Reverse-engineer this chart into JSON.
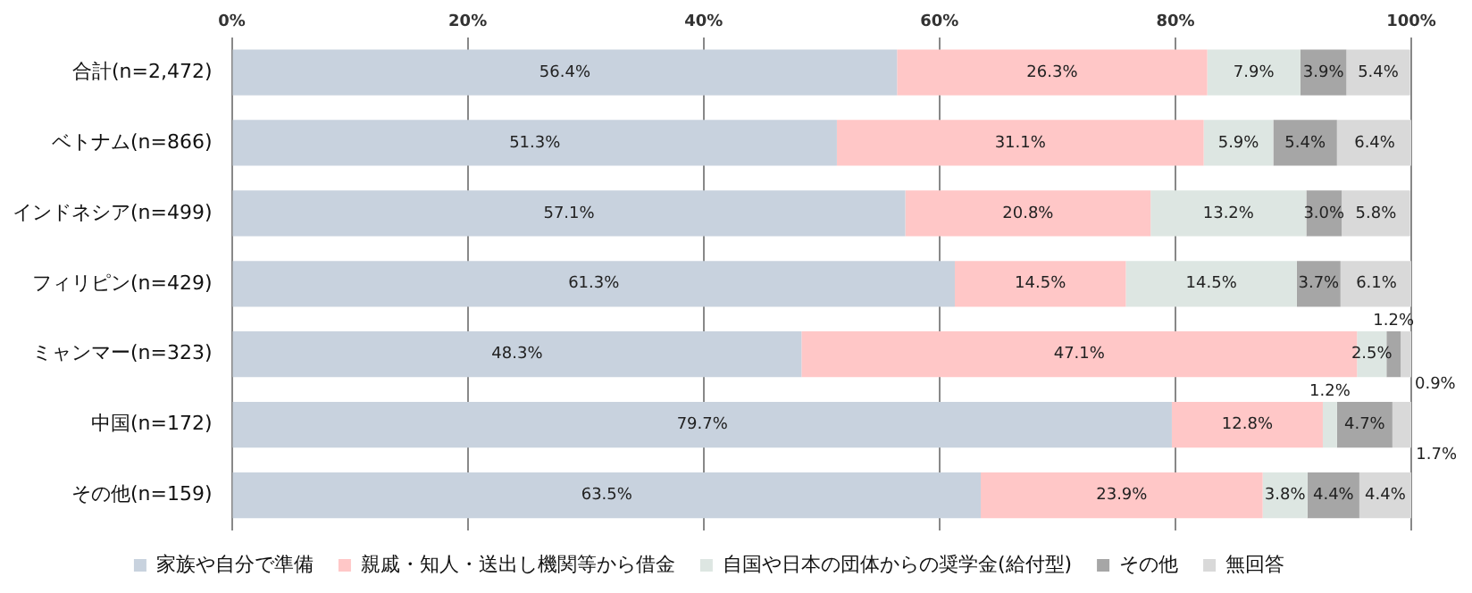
{
  "chart_data": {
    "type": "bar",
    "orientation": "horizontal",
    "stacked": true,
    "grid": "x",
    "legend": "bottom",
    "categories": [
      "合計(n=2,472)",
      "ベトナム(n=866)",
      "インドネシア(n=499)",
      "フィリピン(n=429)",
      "ミャンマー(n=323)",
      "中国(n=172)",
      "その他(n=159)"
    ],
    "xlim": [
      0,
      100
    ],
    "xticks": [
      {
        "value": 0,
        "label": "0%"
      },
      {
        "value": 20,
        "label": "20%"
      },
      {
        "value": 40,
        "label": "40%"
      },
      {
        "value": 60,
        "label": "60%"
      },
      {
        "value": 80,
        "label": "80%"
      },
      {
        "value": 100,
        "label": "100%"
      }
    ],
    "series": [
      {
        "name": "家族や自分で準備",
        "color": "#c8d2de",
        "values": [
          56.4,
          51.3,
          57.1,
          61.3,
          48.3,
          79.7,
          63.5
        ],
        "value_labels": [
          "56.4%",
          "51.3%",
          "57.1%",
          "61.3%",
          "48.3%",
          "79.7%",
          "63.5%"
        ]
      },
      {
        "name": "親戚・知人・送出し機関等から借金",
        "color": "#ffc7c7",
        "values": [
          26.3,
          31.1,
          20.8,
          14.5,
          47.1,
          12.8,
          23.9
        ],
        "value_labels": [
          "26.3%",
          "31.1%",
          "20.8%",
          "14.5%",
          "47.1%",
          "12.8%",
          "23.9%"
        ]
      },
      {
        "name": "自国や日本の団体からの奨学金(給付型)",
        "color": "#dde6e2",
        "values": [
          7.9,
          5.9,
          13.2,
          14.5,
          2.5,
          1.2,
          3.8
        ],
        "value_labels": [
          "7.9%",
          "5.9%",
          "13.2%",
          "14.5%",
          "2.5%",
          "1.2%",
          "3.8%"
        ]
      },
      {
        "name": "その他",
        "color": "#a6a6a6",
        "values": [
          3.9,
          5.4,
          3.0,
          3.7,
          1.2,
          4.7,
          4.4
        ],
        "value_labels": [
          "3.9%",
          "5.4%",
          "3.0%",
          "3.7%",
          "1.2%",
          "4.7%",
          "4.4%"
        ]
      },
      {
        "name": "無回答",
        "color": "#d9d9d9",
        "values": [
          5.4,
          6.4,
          5.8,
          6.1,
          0.9,
          1.7,
          4.4
        ],
        "value_labels": [
          "5.4%",
          "6.4%",
          "5.8%",
          "6.1%",
          "0.9%",
          "1.7%",
          "4.4%"
        ]
      }
    ]
  }
}
